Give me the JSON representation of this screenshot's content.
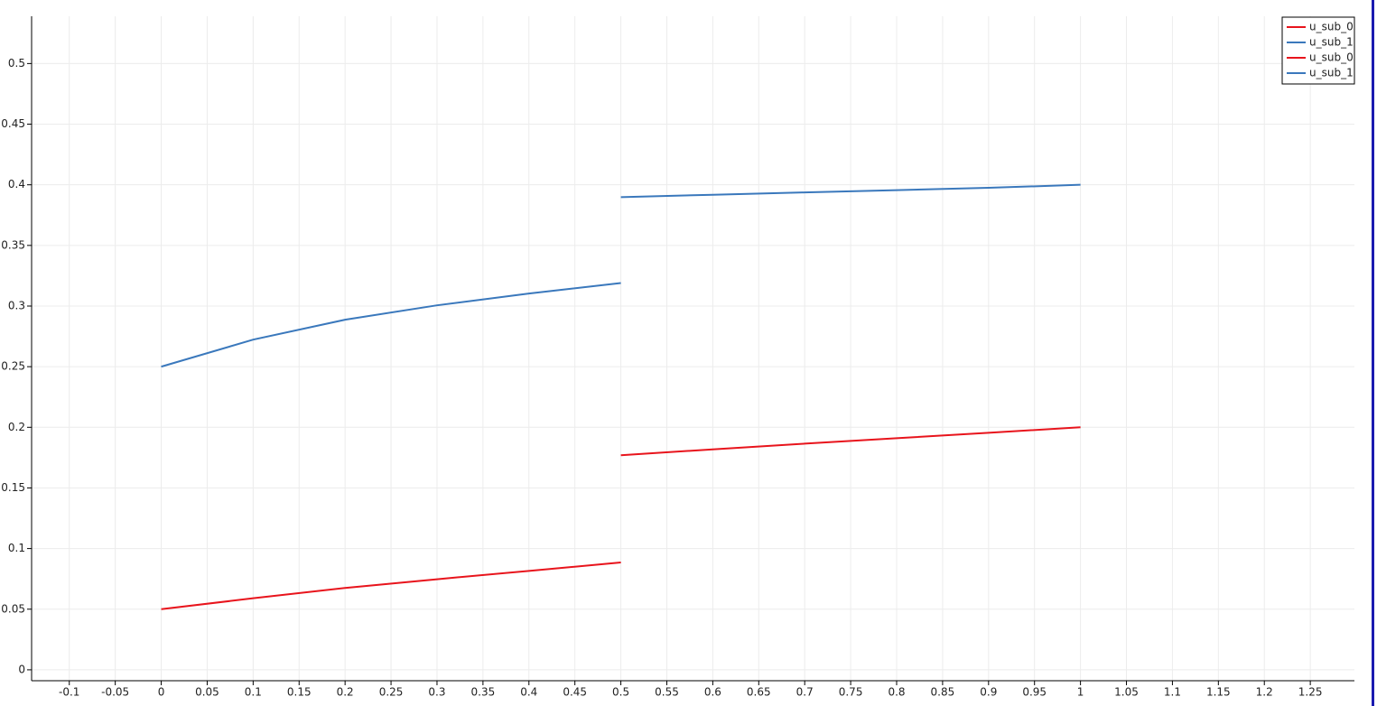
{
  "chart_data": {
    "type": "line",
    "xlim": [
      -0.141,
      1.298
    ],
    "ylim": [
      -0.009,
      0.539
    ],
    "xticks": [
      -0.1,
      -0.05,
      0,
      0.05,
      0.1,
      0.15,
      0.2,
      0.25,
      0.3,
      0.35,
      0.4,
      0.45,
      0.5,
      0.55,
      0.6,
      0.65,
      0.7,
      0.75,
      0.8,
      0.85,
      0.9,
      0.95,
      1,
      1.05,
      1.1,
      1.15,
      1.2,
      1.25
    ],
    "yticks": [
      0,
      0.05,
      0.1,
      0.15,
      0.2,
      0.25,
      0.3,
      0.35,
      0.4,
      0.45,
      0.5
    ],
    "grid": true,
    "legend": "top-right",
    "series": [
      {
        "name": "u_sub_0",
        "color": "#e8141c",
        "x": [
          0,
          0.1,
          0.2,
          0.3,
          0.4,
          0.5
        ],
        "values": [
          0.05,
          0.059,
          0.0675,
          0.0747,
          0.0816,
          0.0885
        ]
      },
      {
        "name": "u_sub_1",
        "color": "#3a78bc",
        "x": [
          0,
          0.1,
          0.2,
          0.3,
          0.4,
          0.5
        ],
        "values": [
          0.25,
          0.2723,
          0.2887,
          0.3006,
          0.3103,
          0.319
        ]
      },
      {
        "name": "u_sub_0",
        "color": "#e8141c",
        "x": [
          0.5,
          0.6,
          0.7,
          0.8,
          0.9,
          1
        ],
        "values": [
          0.177,
          0.1818,
          0.1865,
          0.191,
          0.1955,
          0.2
        ]
      },
      {
        "name": "u_sub_1",
        "color": "#3a78bc",
        "x": [
          0.5,
          0.6,
          0.7,
          0.8,
          0.9,
          1
        ],
        "values": [
          0.3898,
          0.3918,
          0.3937,
          0.3956,
          0.3975,
          0.4
        ]
      }
    ]
  }
}
